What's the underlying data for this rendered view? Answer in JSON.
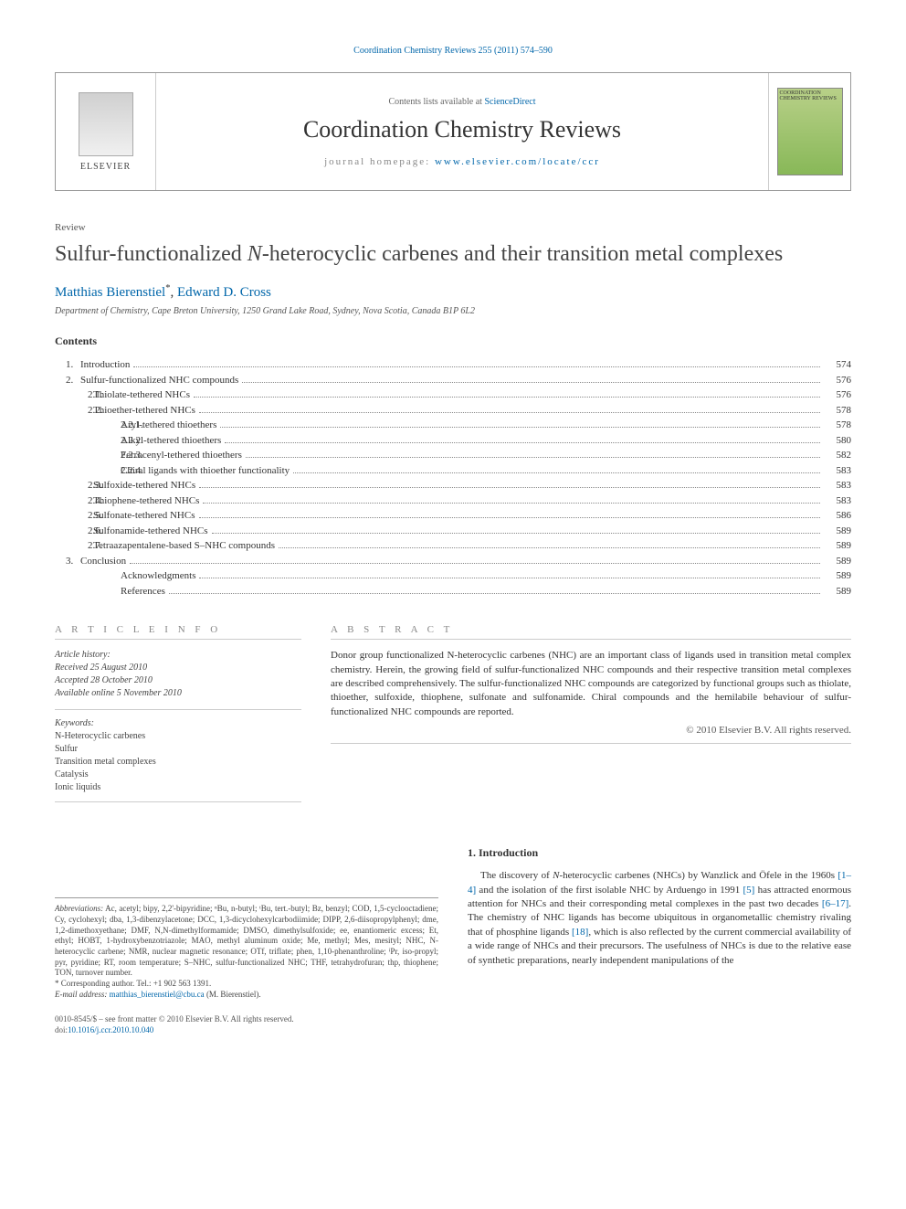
{
  "journalRef": {
    "text": "Coordination Chemistry Reviews 255 (2011) 574–590"
  },
  "header": {
    "elsevier": "ELSEVIER",
    "contentsAvailable": "Contents lists available at ",
    "scienceDirect": "ScienceDirect",
    "journalName": "Coordination Chemistry Reviews",
    "homepageLabel": "journal homepage: ",
    "homepageUrl": "www.elsevier.com/locate/ccr",
    "coverText": "COORDINATION CHEMISTRY REVIEWS"
  },
  "article": {
    "type": "Review",
    "title": "Sulfur-functionalized N-heterocyclic carbenes and their transition metal complexes",
    "authors": [
      {
        "name": "Matthias Bierenstiel",
        "marker": "*"
      },
      {
        "name": "Edward D. Cross",
        "marker": ""
      }
    ],
    "affiliation": "Department of Chemistry, Cape Breton University, 1250 Grand Lake Road, Sydney, Nova Scotia, Canada B1P 6L2"
  },
  "contentsHeading": "Contents",
  "toc": [
    {
      "level": 1,
      "num": "1.",
      "label": "Introduction",
      "page": "574"
    },
    {
      "level": 1,
      "num": "2.",
      "label": "Sulfur-functionalized NHC compounds",
      "page": "576"
    },
    {
      "level": 2,
      "num": "2.1.",
      "label": "Thiolate-tethered NHCs",
      "page": "576"
    },
    {
      "level": 2,
      "num": "2.2.",
      "label": "Thioether-tethered NHCs",
      "page": "578"
    },
    {
      "level": 3,
      "num": "2.2.1.",
      "label": "Aryl-tethered thioethers",
      "page": "578"
    },
    {
      "level": 3,
      "num": "2.2.2.",
      "label": "Alkyl-tethered thioethers",
      "page": "580"
    },
    {
      "level": 3,
      "num": "2.2.3.",
      "label": "Ferrocenyl-tethered thioethers",
      "page": "582"
    },
    {
      "level": 3,
      "num": "2.2.4.",
      "label": "Chiral ligands with thioether functionality",
      "page": "583"
    },
    {
      "level": 2,
      "num": "2.3.",
      "label": "Sulfoxide-tethered NHCs",
      "page": "583"
    },
    {
      "level": 2,
      "num": "2.4.",
      "label": "Thiophene-tethered NHCs",
      "page": "583"
    },
    {
      "level": 2,
      "num": "2.5.",
      "label": "Sulfonate-tethered NHCs",
      "page": "586"
    },
    {
      "level": 2,
      "num": "2.6.",
      "label": "Sulfonamide-tethered NHCs",
      "page": "589"
    },
    {
      "level": 2,
      "num": "2.7.",
      "label": "Tetraazapentalene-based S–NHC compounds",
      "page": "589"
    },
    {
      "level": 1,
      "num": "3.",
      "label": "Conclusion",
      "page": "589"
    },
    {
      "level": 0,
      "num": "",
      "label": "Acknowledgments",
      "page": "589"
    },
    {
      "level": 0,
      "num": "",
      "label": "References",
      "page": "589"
    }
  ],
  "info": {
    "articleInfoLabel": "A R T I C L E   I N F O",
    "abstractLabel": "A B S T R A C T",
    "historyLabel": "Article history:",
    "received": "Received 25 August 2010",
    "accepted": "Accepted 28 October 2010",
    "online": "Available online 5 November 2010",
    "keywordsLabel": "Keywords:",
    "keywords": [
      "N-Heterocyclic carbenes",
      "Sulfur",
      "Transition metal complexes",
      "Catalysis",
      "Ionic liquids"
    ]
  },
  "abstract": {
    "text": "Donor group functionalized N-heterocyclic carbenes (NHC) are an important class of ligands used in transition metal complex chemistry. Herein, the growing field of sulfur-functionalized NHC compounds and their respective transition metal complexes are described comprehensively. The sulfur-functionalized NHC compounds are categorized by functional groups such as thiolate, thioether, sulfoxide, thiophene, sulfonate and sulfonamide. Chiral compounds and the hemilabile behaviour of sulfur-functionalized NHC compounds are reported.",
    "copyright": "© 2010 Elsevier B.V. All rights reserved."
  },
  "introduction": {
    "heading": "1. Introduction",
    "text": "The discovery of N-heterocyclic carbenes (NHCs) by Wanzlick and Öfele in the 1960s [1–4] and the isolation of the first isolable NHC by Arduengo in 1991 [5] has attracted enormous attention for NHCs and their corresponding metal complexes in the past two decades [6–17]. The chemistry of NHC ligands has become ubiquitous in organometallic chemistry rivaling that of phosphine ligands [18], which is also reflected by the current commercial availability of a wide range of NHCs and their precursors. The usefulness of NHCs is due to the relative ease of synthetic preparations, nearly independent manipulations of the",
    "refs": {
      "r1_4": "[1–4]",
      "r5": "[5]",
      "r6_17": "[6–17]",
      "r18": "[18]"
    }
  },
  "footnotes": {
    "abbrevLabel": "Abbreviations:",
    "abbrevText": " Ac, acetyl; bipy, 2,2'-bipyridine; ⁿBu, n-butyl; ᵗBu, tert.-butyl; Bz, benzyl; COD, 1,5-cyclooctadiene; Cy, cyclohexyl; dba, 1,3-dibenzylacetone; DCC, 1,3-dicyclohexylcarbodiimide; DIPP, 2,6-diisopropylphenyl; dme, 1,2-dimethoxyethane; DMF, N,N-dimethylformamide; DMSO, dimethylsulfoxide; ee, enantiomeric excess; Et, ethyl; HOBT, 1-hydroxybenzotriazole; MAO, methyl aluminum oxide; Me, methyl; Mes, mesityl; NHC, N-heterocyclic carbene; NMR, nuclear magnetic resonance; OTf, triflate; phen, 1,10-phenanthroline; ⁱPr, iso-propyl; pyr, pyridine; RT, room temperature; S–NHC, sulfur-functionalized NHC; THF, tetrahydrofuran; thp, thiophene; TON, turnover number.",
    "corresponding": "* Corresponding author. Tel.: +1 902 563 1391.",
    "emailLabel": "E-mail address: ",
    "email": "matthias_bierenstiel@cbu.ca",
    "emailSuffix": " (M. Bierenstiel)."
  },
  "footer": {
    "line1": "0010-8545/$ – see front matter © 2010 Elsevier B.V. All rights reserved.",
    "doiLabel": "doi:",
    "doi": "10.1016/j.ccr.2010.10.040"
  },
  "colors": {
    "link": "#0066aa",
    "text": "#333333",
    "muted": "#888888",
    "border": "#999999"
  }
}
